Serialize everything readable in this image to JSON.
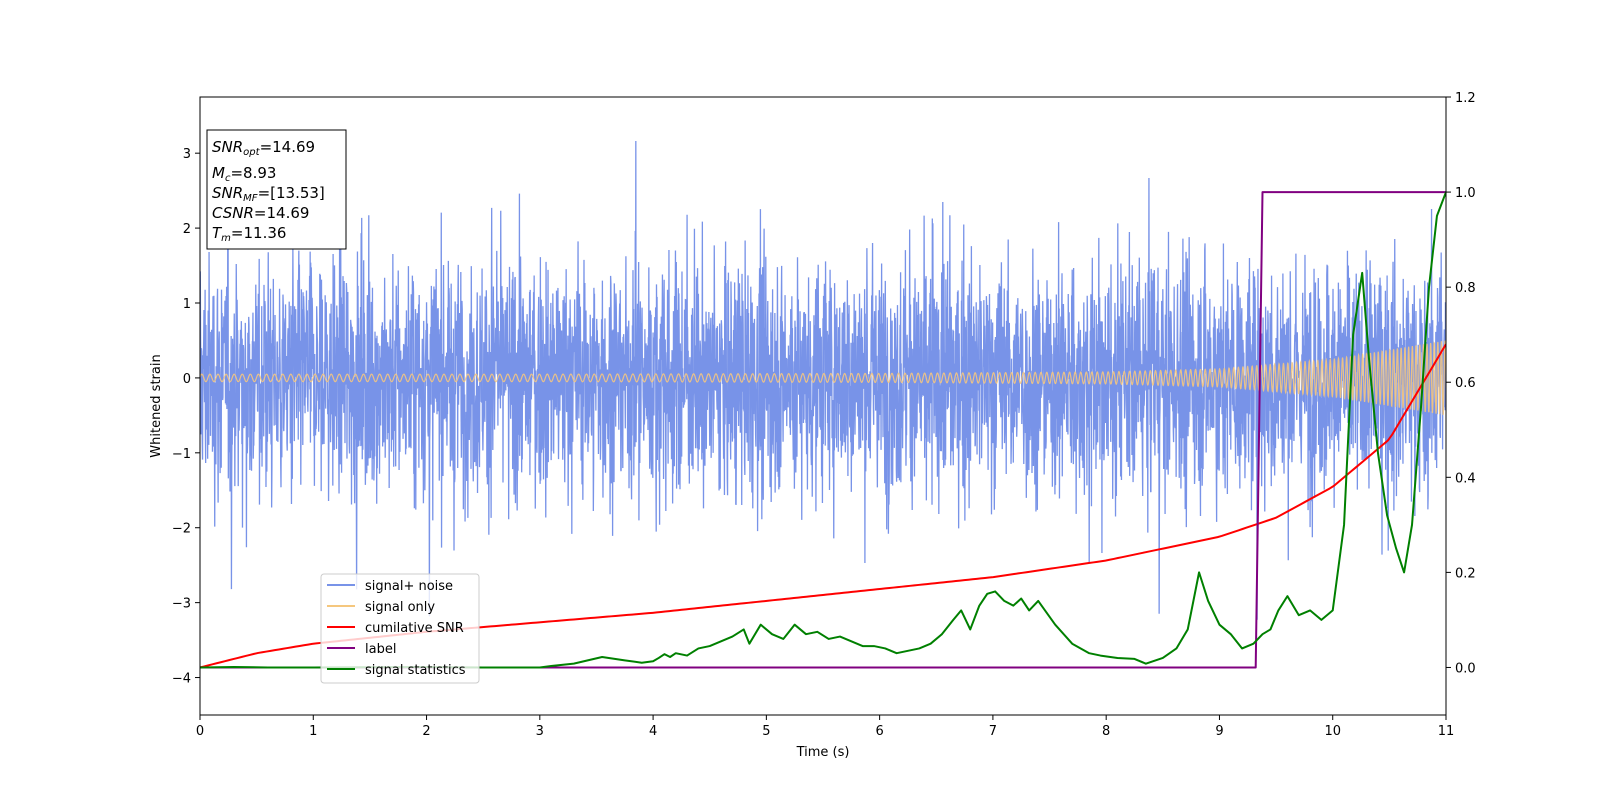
{
  "chart_data": {
    "type": "line",
    "title": "",
    "xlabel": "Time (s)",
    "ylabel": "Whitened strain",
    "xlim": [
      0,
      11
    ],
    "ylim": [
      -4.5,
      3.75
    ],
    "y2lim": [
      -0.1,
      1.2
    ],
    "grid": false,
    "legend_position": "lower-left",
    "x_ticks": [
      "0",
      "1",
      "2",
      "3",
      "4",
      "5",
      "6",
      "7",
      "8",
      "9",
      "10",
      "11"
    ],
    "y_ticks": [
      "−4",
      "−3",
      "−2",
      "−1",
      "0",
      "1",
      "2",
      "3"
    ],
    "y2_ticks": [
      "0.0",
      "0.2",
      "0.4",
      "0.6",
      "0.8",
      "1.0",
      "1.2"
    ],
    "info_box": {
      "snr_opt_main": "SNR",
      "snr_opt_sub": "opt",
      "snr_opt_value": "=14.69",
      "mc_main": "M",
      "mc_sub": "c",
      "mc_value": "=8.93",
      "snr_mf_main": "SNR",
      "snr_mf_sub": "MF",
      "snr_mf_value": "=[13.53]",
      "csnr_main": "CSNR",
      "csnr_value": "=14.69",
      "tm_main": "T",
      "tm_sub": "m",
      "tm_value": "=11.36"
    },
    "series": [
      {
        "name": "signal+ noise",
        "color": "#7893e8",
        "axis": "left",
        "description_kind": "noise_band",
        "envelope": [
          -2.5,
          2.6
        ]
      },
      {
        "name": "signal only",
        "color": "#f5c77e",
        "axis": "left",
        "description_kind": "chirp",
        "amplitude": {
          "x": [
            0,
            3,
            6,
            8,
            9,
            10,
            11
          ],
          "y": [
            0.05,
            0.05,
            0.06,
            0.08,
            0.12,
            0.25,
            0.5
          ]
        }
      },
      {
        "name": "cumilative SNR",
        "color": "#ff0000",
        "axis": "right",
        "x": [
          0,
          0.5,
          1,
          2,
          3,
          4,
          5,
          6,
          7,
          8,
          9,
          9.5,
          10,
          10.5,
          11
        ],
        "y": [
          0.0,
          0.03,
          0.05,
          0.075,
          0.095,
          0.115,
          0.14,
          0.165,
          0.19,
          0.225,
          0.275,
          0.315,
          0.38,
          0.48,
          0.68
        ]
      },
      {
        "name": "label",
        "color": "#800080",
        "axis": "right",
        "x": [
          0,
          9.32,
          9.38,
          11
        ],
        "y": [
          0.0,
          0.0,
          1.0,
          1.0
        ]
      },
      {
        "name": "signal statistics",
        "color": "#008000",
        "axis": "right",
        "x": [
          0,
          0.3,
          0.6,
          1,
          2,
          2.5,
          3,
          3.1,
          3.3,
          3.55,
          3.75,
          3.9,
          4.0,
          4.05,
          4.1,
          4.15,
          4.2,
          4.3,
          4.4,
          4.5,
          4.6,
          4.7,
          4.8,
          4.85,
          4.95,
          5.05,
          5.15,
          5.25,
          5.35,
          5.45,
          5.55,
          5.65,
          5.75,
          5.85,
          5.95,
          6.05,
          6.15,
          6.25,
          6.35,
          6.45,
          6.55,
          6.65,
          6.72,
          6.8,
          6.88,
          6.95,
          7.02,
          7.1,
          7.18,
          7.25,
          7.32,
          7.4,
          7.55,
          7.7,
          7.85,
          7.95,
          8.1,
          8.25,
          8.35,
          8.5,
          8.62,
          8.72,
          8.82,
          8.9,
          9.0,
          9.1,
          9.2,
          9.3,
          9.38,
          9.45,
          9.52,
          9.6,
          9.7,
          9.8,
          9.9,
          10.0,
          10.1,
          10.18,
          10.26,
          10.32,
          10.4,
          10.48,
          10.56,
          10.63,
          10.7,
          10.78,
          10.85,
          10.92,
          11.0
        ],
        "y": [
          0.0,
          0.001,
          0.0,
          0.0,
          0.001,
          0.0,
          0.0,
          0.003,
          0.008,
          0.022,
          0.015,
          0.01,
          0.013,
          0.02,
          0.028,
          0.022,
          0.03,
          0.025,
          0.04,
          0.045,
          0.055,
          0.065,
          0.08,
          0.05,
          0.09,
          0.07,
          0.06,
          0.09,
          0.07,
          0.075,
          0.06,
          0.065,
          0.055,
          0.045,
          0.045,
          0.04,
          0.03,
          0.035,
          0.04,
          0.05,
          0.07,
          0.1,
          0.12,
          0.08,
          0.13,
          0.155,
          0.16,
          0.14,
          0.13,
          0.145,
          0.12,
          0.14,
          0.09,
          0.05,
          0.03,
          0.025,
          0.02,
          0.018,
          0.008,
          0.02,
          0.04,
          0.08,
          0.2,
          0.14,
          0.09,
          0.07,
          0.04,
          0.05,
          0.07,
          0.08,
          0.12,
          0.15,
          0.11,
          0.12,
          0.1,
          0.12,
          0.3,
          0.7,
          0.83,
          0.65,
          0.45,
          0.32,
          0.25,
          0.2,
          0.3,
          0.55,
          0.8,
          0.95,
          1.0
        ]
      }
    ]
  }
}
